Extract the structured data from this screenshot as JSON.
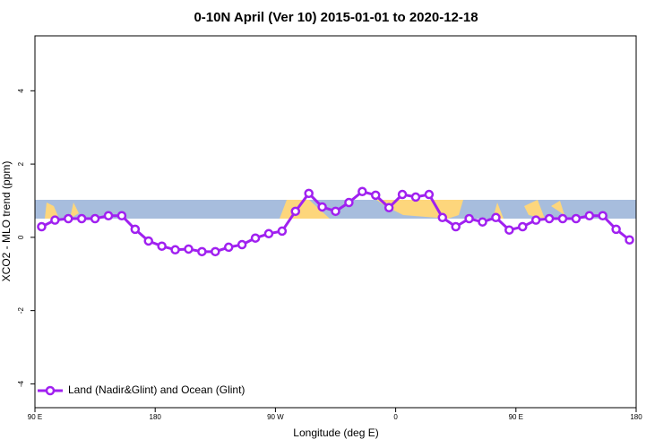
{
  "chart_data": {
    "type": "line",
    "title": "0-10N April (Ver 10)   2015-01-01 to 2020-12-18",
    "x_label": "Longitude (deg E)",
    "y_label": "XCO2 - MLO trend (ppm)",
    "x": [
      95,
      105,
      115,
      125,
      135,
      145,
      155,
      165,
      175,
      185,
      195,
      205,
      215,
      225,
      235,
      245,
      255,
      265,
      275,
      285,
      295,
      305,
      315,
      325,
      335,
      345,
      355,
      365,
      375,
      385,
      395,
      405,
      415,
      425,
      435,
      445,
      455,
      465,
      475,
      485,
      495,
      505,
      515,
      525,
      535
    ],
    "series": [
      {
        "name": "Land (Nadir&Glint) and Ocean (Glint)",
        "color": "#a020f0",
        "values": [
          0.29,
          0.47,
          0.51,
          0.51,
          0.51,
          0.59,
          0.59,
          0.22,
          -0.1,
          -0.24,
          -0.34,
          -0.32,
          -0.39,
          -0.39,
          -0.27,
          -0.2,
          -0.02,
          0.1,
          0.17,
          0.71,
          1.2,
          0.83,
          0.71,
          0.95,
          1.25,
          1.15,
          0.81,
          1.17,
          1.1,
          1.17,
          0.54,
          0.29,
          0.51,
          0.42,
          0.54,
          0.2,
          0.29,
          0.47,
          0.51,
          0.51,
          0.51,
          0.59,
          0.59,
          0.22,
          -0.07
        ]
      }
    ],
    "xlim": [
      90,
      540
    ],
    "xticks": [
      {
        "value": 90,
        "label": "90 E"
      },
      180,
      {
        "value": 270,
        "label": "90 W"
      },
      {
        "value": 360,
        "label": "0"
      },
      {
        "value": 450,
        "label": "90 E"
      },
      {
        "value": 540,
        "label": "180"
      }
    ],
    "ylim": [
      -4.65,
      5.5
    ],
    "yticks": [
      -4,
      -2,
      0,
      2,
      4
    ],
    "legend": "bottom-left"
  }
}
